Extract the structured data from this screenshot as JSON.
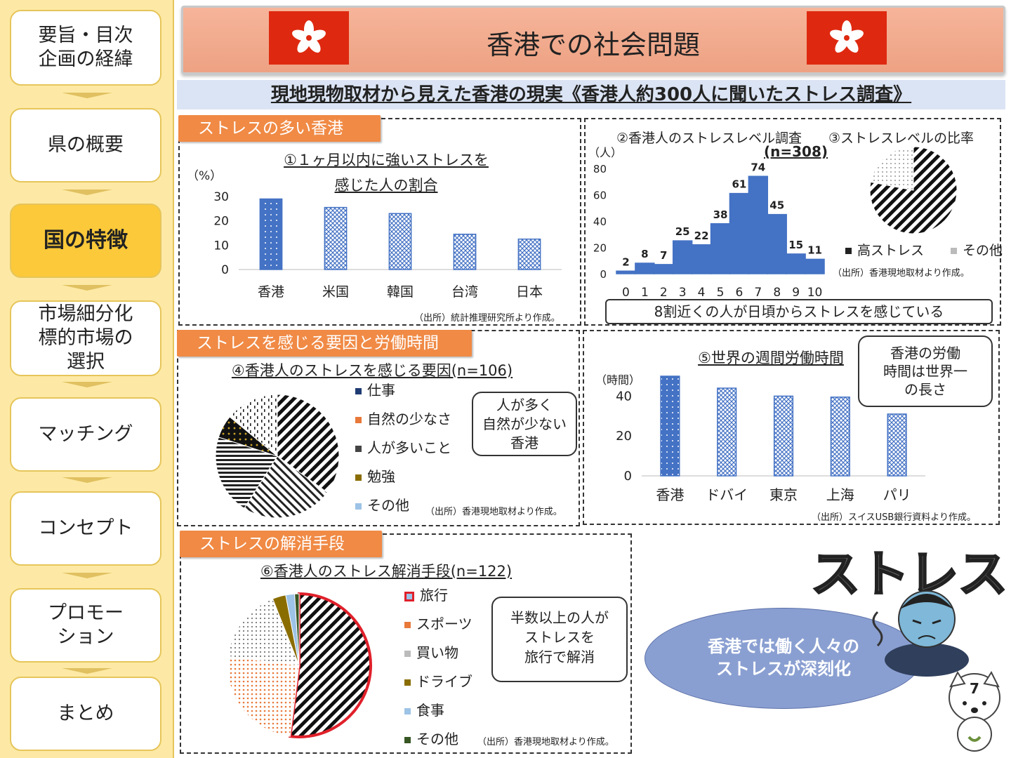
{
  "sidebar": {
    "items": [
      {
        "label": "要旨・目次\n企画の経緯"
      },
      {
        "label": "県の概要"
      },
      {
        "label": "国の特徴",
        "active": true
      },
      {
        "label": "市場細分化\n標的市場の\n選択"
      },
      {
        "label": "マッチング"
      },
      {
        "label": "コンセプト"
      },
      {
        "label": "プロモー\nション"
      },
      {
        "label": "まとめ"
      }
    ]
  },
  "header": {
    "title": "香港での社会問題"
  },
  "subheader": {
    "text": "現地現物取材から見えた香港の現実《香港人約300人に聞いたストレス調査》"
  },
  "sections": {
    "s1": {
      "tag": "ストレスの多い香港"
    },
    "s2": {
      "tag": "ストレスを感じる要因と労働時間"
    },
    "s3": {
      "tag": "ストレスの解消手段"
    }
  },
  "colors": {
    "bar": "#4472c4",
    "accent": "#f08a45",
    "flag": "#de2910",
    "ellipse": "#8a9fd1"
  },
  "chart1": {
    "title_line1": "①１ヶ月以内に強いストレスを",
    "title_line2": "感じた人の割合",
    "unit": "（%）",
    "source": "（出所）統計推理研究所より作成。"
  },
  "chart2": {
    "title": "②香港人のストレスレベル調査",
    "n": "(n=308)",
    "unit": "（人）"
  },
  "chart3": {
    "title": "③ストレスレベルの比率",
    "source": "（出所）香港現地取材より作成。"
  },
  "callout1": {
    "text": "8割近くの人が日頃からストレスを感じている"
  },
  "chart4": {
    "title": "④香港人のストレスを感じる要因(n=106)",
    "source": "（出所）香港現地取材より作成。"
  },
  "callout2": {
    "line1": "人が多く",
    "line2": "自然が少ない",
    "line3": "香港"
  },
  "chart5": {
    "title": "⑤世界の週間労働時間",
    "unit": "（時間）",
    "source": "（出所）スイスUSB銀行資料より作成。"
  },
  "callout3": {
    "line1": "香港の労働",
    "line2": "時間は世界一",
    "line3": "の長さ"
  },
  "chart6": {
    "title": "⑥香港人のストレス解消手段(n=122)",
    "source": "（出所）香港現地取材より作成。"
  },
  "callout4": {
    "line1": "半数以上の人が",
    "line2": "ストレスを",
    "line3": "旅行で解消"
  },
  "summary": {
    "line1": "香港では働く人々の",
    "line2": "ストレスが深刻化"
  },
  "illustration": {
    "text": "ストレス"
  },
  "page_number": "7",
  "chart_data": [
    {
      "id": "chart1",
      "type": "bar",
      "categories": [
        "香港",
        "米国",
        "韓国",
        "台湾",
        "日本"
      ],
      "values": [
        29,
        25.5,
        23,
        14.5,
        12.5
      ],
      "ylim": [
        0,
        30
      ],
      "yticks": [
        0,
        10,
        20,
        30
      ]
    },
    {
      "id": "chart2",
      "type": "bar",
      "categories": [
        "0",
        "1",
        "2",
        "3",
        "4",
        "5",
        "6",
        "7",
        "8",
        "9",
        "10"
      ],
      "values": [
        2,
        8,
        7,
        25,
        22,
        38,
        61,
        74,
        45,
        15,
        11
      ],
      "ylim": [
        0,
        80
      ],
      "yticks": [
        0,
        20,
        40,
        60,
        80
      ]
    },
    {
      "id": "chart3",
      "type": "pie",
      "categories": [
        "高ストレス",
        "その他"
      ],
      "values": [
        78,
        22
      ]
    },
    {
      "id": "chart4",
      "type": "pie",
      "categories": [
        "仕事",
        "自然の少なさ",
        "人が多いこと",
        "勉強",
        "その他"
      ],
      "values": [
        35,
        24,
        21,
        6,
        14
      ]
    },
    {
      "id": "chart5",
      "type": "bar",
      "categories": [
        "香港",
        "ドバイ",
        "東京",
        "上海",
        "パリ"
      ],
      "values": [
        50,
        44,
        40,
        39.5,
        31
      ],
      "ylim": [
        0,
        50
      ],
      "yticks": [
        0,
        20,
        40
      ]
    },
    {
      "id": "chart6",
      "type": "pie",
      "categories": [
        "旅行",
        "スポーツ",
        "買い物",
        "ドライブ",
        "食事",
        "その他"
      ],
      "values": [
        52,
        25,
        17,
        3,
        2,
        1
      ]
    }
  ]
}
